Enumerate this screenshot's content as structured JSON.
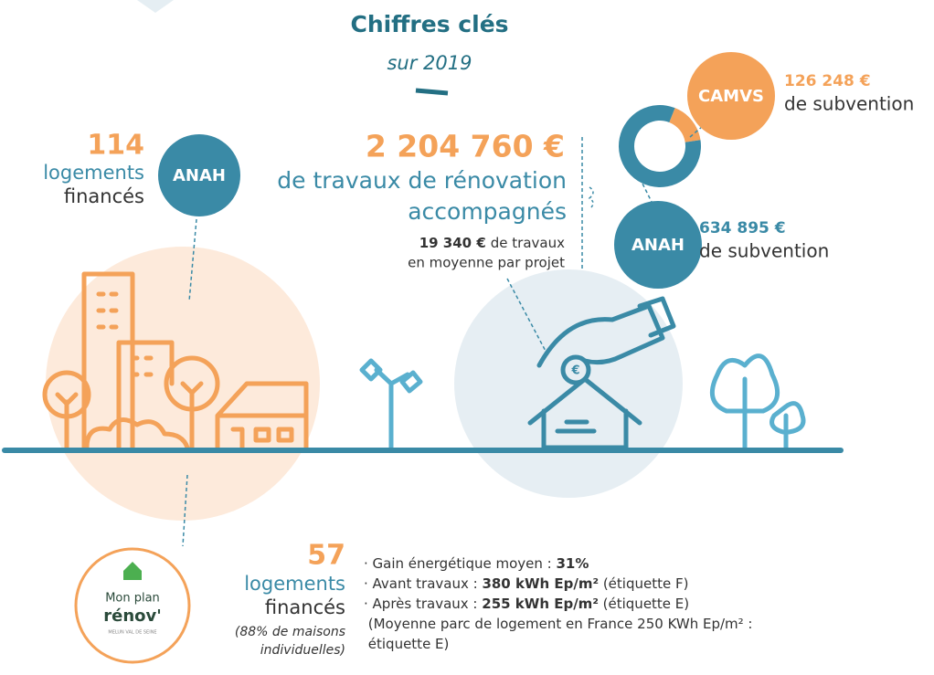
{
  "header": {
    "title": "Chiffres clés",
    "subtitle": "sur 2019"
  },
  "left": {
    "count": "114",
    "line1": "logements",
    "line2": "financés",
    "badge": "ANAH"
  },
  "center": {
    "amount": "2 204 760 €",
    "line1": "de travaux de rénovation",
    "line2": "accompagnés",
    "average": "19 340 €",
    "average_line1": "de travaux",
    "average_line2": "en moyenne par projet"
  },
  "right": {
    "camvs": {
      "badge": "CAMVS",
      "amount": {
        "value": 126248,
        "label": "126 248 €"
      },
      "text": "de subvention"
    },
    "anah": {
      "badge": "ANAH",
      "amount": {
        "value": 634895,
        "label": "634 895 €"
      },
      "text": "de subvention"
    }
  },
  "bottom": {
    "count": "57",
    "line1": "logements",
    "line2": "financés",
    "note1": "(88% de maisons",
    "note2": "individuelles)",
    "logo": {
      "line1": "Mon plan",
      "line2": "rénov'",
      "line3": "MELUN VAL DE SEINE"
    },
    "bullets": [
      {
        "prefix": "· Gain énergétique moyen : ",
        "bold": "31%"
      },
      {
        "prefix": "· Avant travaux : ",
        "bold": "380 kWh Ep/m²",
        "suffix": " (étiquette F)"
      },
      {
        "prefix": "· Après travaux : ",
        "bold": "255 kWh Ep/m²",
        "suffix": " (étiquette E)"
      },
      {
        "prefix": " (Moyenne parc de logement en France 250 KWh Ep/m² :"
      },
      {
        "prefix": " étiquette E)"
      }
    ]
  }
}
